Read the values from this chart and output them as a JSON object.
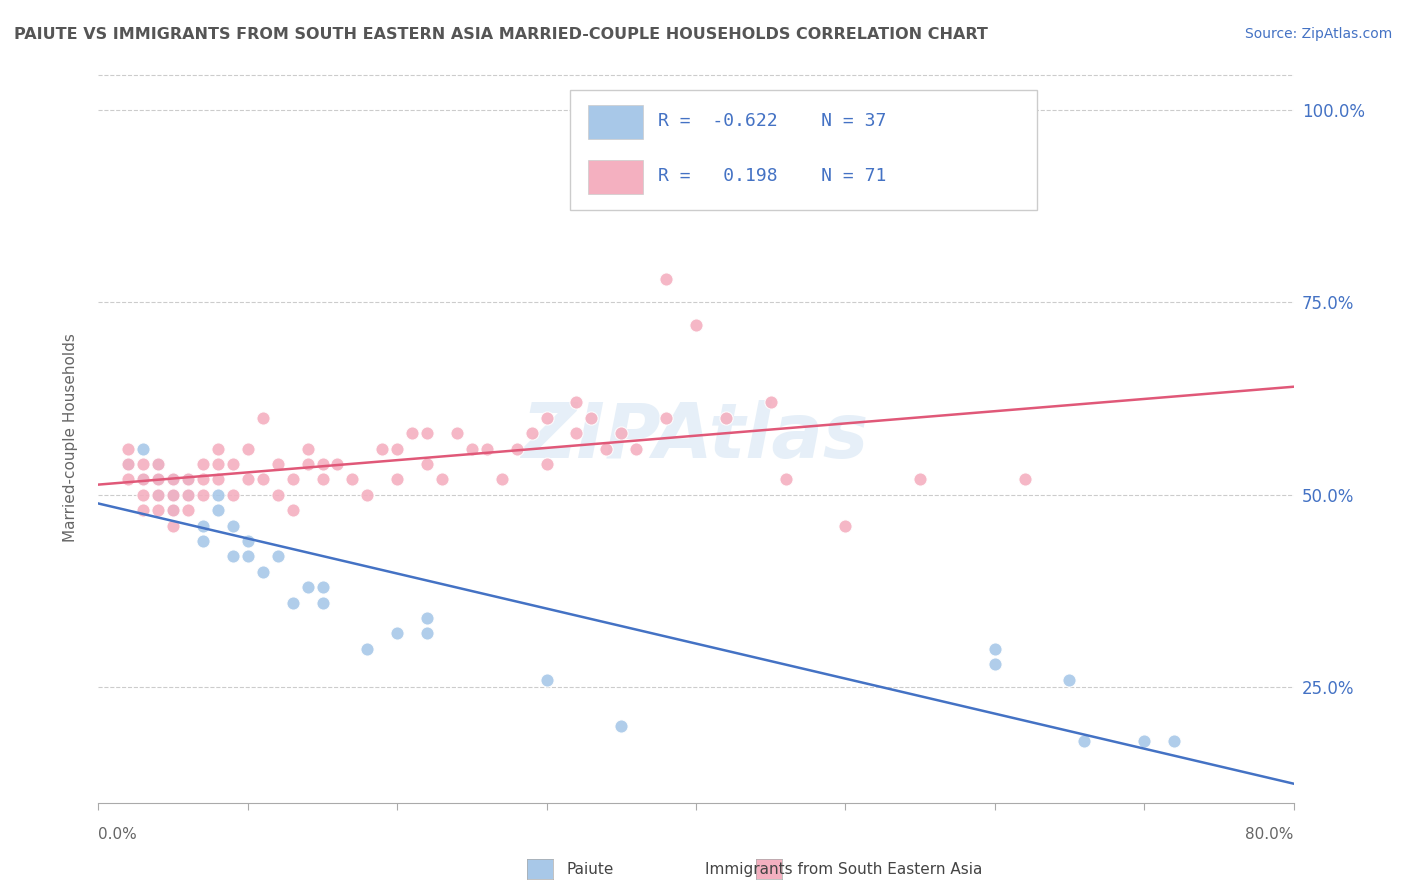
{
  "title": "PAIUTE VS IMMIGRANTS FROM SOUTH EASTERN ASIA MARRIED-COUPLE HOUSEHOLDS CORRELATION CHART",
  "source": "Source: ZipAtlas.com",
  "ylabel": "Married-couple Households",
  "ytick_values": [
    0.25,
    0.5,
    0.75,
    1.0
  ],
  "xmin": 0.0,
  "xmax": 0.8,
  "ymin": 0.1,
  "ymax": 1.05,
  "watermark": "ZIPAtlas",
  "paiute_color": "#a8c8e8",
  "immigrants_color": "#f4b0c0",
  "trend_paiute_color": "#4472c4",
  "trend_immigrants_color": "#e05878",
  "legend_text_color": "#4472c4",
  "paiute_R": -0.622,
  "paiute_N": 37,
  "immigrants_R": 0.198,
  "immigrants_N": 71,
  "paiute_points": [
    [
      0.02,
      0.54
    ],
    [
      0.03,
      0.52
    ],
    [
      0.03,
      0.56
    ],
    [
      0.04,
      0.5
    ],
    [
      0.04,
      0.54
    ],
    [
      0.04,
      0.52
    ],
    [
      0.05,
      0.48
    ],
    [
      0.05,
      0.5
    ],
    [
      0.05,
      0.52
    ],
    [
      0.06,
      0.5
    ],
    [
      0.06,
      0.52
    ],
    [
      0.07,
      0.44
    ],
    [
      0.07,
      0.46
    ],
    [
      0.08,
      0.48
    ],
    [
      0.08,
      0.5
    ],
    [
      0.09,
      0.42
    ],
    [
      0.09,
      0.46
    ],
    [
      0.1,
      0.42
    ],
    [
      0.1,
      0.44
    ],
    [
      0.11,
      0.4
    ],
    [
      0.12,
      0.42
    ],
    [
      0.13,
      0.36
    ],
    [
      0.14,
      0.38
    ],
    [
      0.15,
      0.36
    ],
    [
      0.15,
      0.38
    ],
    [
      0.18,
      0.3
    ],
    [
      0.2,
      0.32
    ],
    [
      0.22,
      0.32
    ],
    [
      0.22,
      0.34
    ],
    [
      0.3,
      0.26
    ],
    [
      0.35,
      0.2
    ],
    [
      0.6,
      0.28
    ],
    [
      0.6,
      0.3
    ],
    [
      0.65,
      0.26
    ],
    [
      0.66,
      0.18
    ],
    [
      0.7,
      0.18
    ],
    [
      0.72,
      0.18
    ]
  ],
  "immigrants_points": [
    [
      0.02,
      0.52
    ],
    [
      0.02,
      0.54
    ],
    [
      0.02,
      0.56
    ],
    [
      0.03,
      0.48
    ],
    [
      0.03,
      0.5
    ],
    [
      0.03,
      0.52
    ],
    [
      0.03,
      0.54
    ],
    [
      0.04,
      0.48
    ],
    [
      0.04,
      0.5
    ],
    [
      0.04,
      0.52
    ],
    [
      0.04,
      0.54
    ],
    [
      0.05,
      0.46
    ],
    [
      0.05,
      0.48
    ],
    [
      0.05,
      0.5
    ],
    [
      0.05,
      0.52
    ],
    [
      0.06,
      0.48
    ],
    [
      0.06,
      0.5
    ],
    [
      0.06,
      0.52
    ],
    [
      0.07,
      0.5
    ],
    [
      0.07,
      0.52
    ],
    [
      0.07,
      0.54
    ],
    [
      0.08,
      0.52
    ],
    [
      0.08,
      0.54
    ],
    [
      0.08,
      0.56
    ],
    [
      0.09,
      0.5
    ],
    [
      0.09,
      0.54
    ],
    [
      0.1,
      0.52
    ],
    [
      0.1,
      0.56
    ],
    [
      0.11,
      0.52
    ],
    [
      0.11,
      0.6
    ],
    [
      0.12,
      0.5
    ],
    [
      0.12,
      0.54
    ],
    [
      0.13,
      0.48
    ],
    [
      0.13,
      0.52
    ],
    [
      0.14,
      0.54
    ],
    [
      0.14,
      0.56
    ],
    [
      0.15,
      0.52
    ],
    [
      0.15,
      0.54
    ],
    [
      0.16,
      0.54
    ],
    [
      0.17,
      0.52
    ],
    [
      0.18,
      0.5
    ],
    [
      0.19,
      0.56
    ],
    [
      0.2,
      0.52
    ],
    [
      0.2,
      0.56
    ],
    [
      0.21,
      0.58
    ],
    [
      0.22,
      0.54
    ],
    [
      0.22,
      0.58
    ],
    [
      0.23,
      0.52
    ],
    [
      0.24,
      0.58
    ],
    [
      0.25,
      0.56
    ],
    [
      0.26,
      0.56
    ],
    [
      0.27,
      0.52
    ],
    [
      0.28,
      0.56
    ],
    [
      0.29,
      0.58
    ],
    [
      0.3,
      0.54
    ],
    [
      0.3,
      0.6
    ],
    [
      0.32,
      0.58
    ],
    [
      0.32,
      0.62
    ],
    [
      0.33,
      0.6
    ],
    [
      0.34,
      0.56
    ],
    [
      0.35,
      0.58
    ],
    [
      0.36,
      0.56
    ],
    [
      0.38,
      0.6
    ],
    [
      0.38,
      0.78
    ],
    [
      0.4,
      0.72
    ],
    [
      0.42,
      0.6
    ],
    [
      0.45,
      0.62
    ],
    [
      0.46,
      0.52
    ],
    [
      0.5,
      0.46
    ],
    [
      0.55,
      0.52
    ],
    [
      0.62,
      0.52
    ]
  ]
}
